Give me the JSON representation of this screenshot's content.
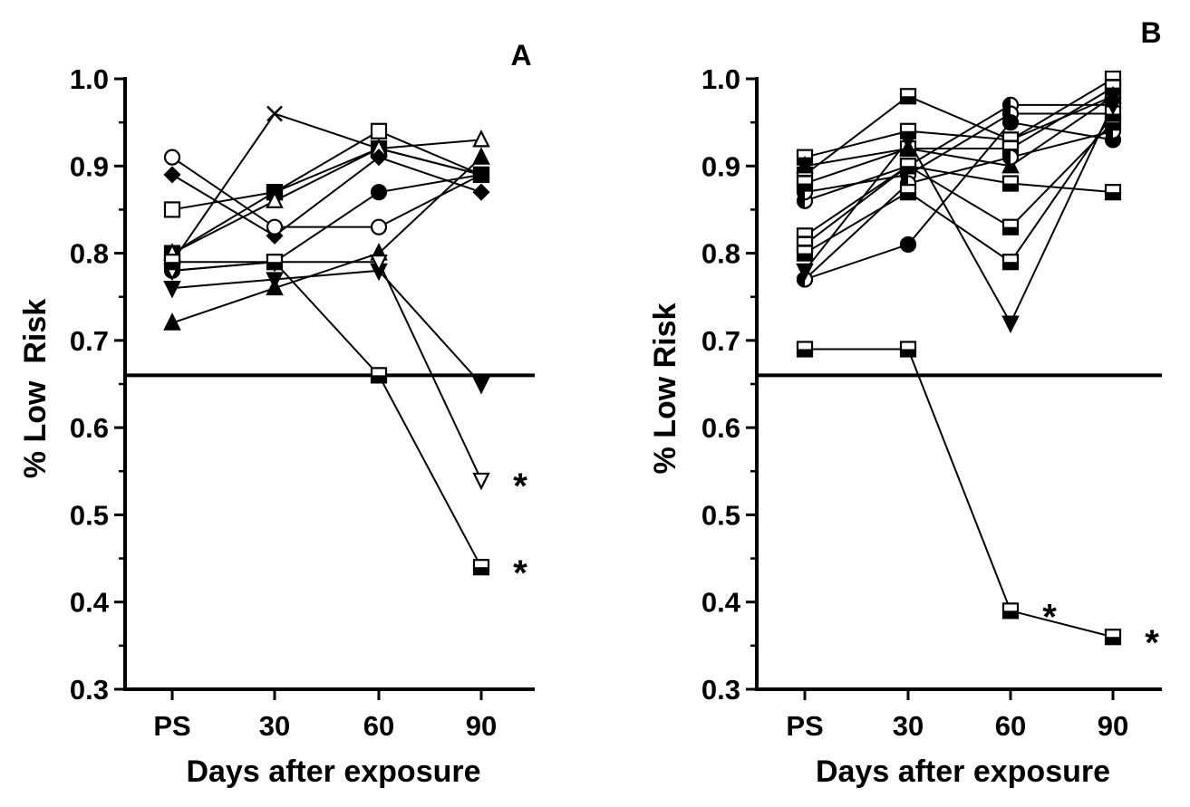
{
  "chart_data": [
    {
      "type": "line",
      "panel_label": "A",
      "xlabel": "Days after exposure",
      "ylabel": "% Low  Risk",
      "categories": [
        "PS",
        "30",
        "60",
        "90"
      ],
      "ylim": [
        0.3,
        1.0
      ],
      "yticks": [
        "0.3",
        "0.4",
        "0.5",
        "0.6",
        "0.7",
        "0.8",
        "0.9",
        "1.0"
      ],
      "threshold": 0.66,
      "series": [
        {
          "marker": "x",
          "values": [
            0.79,
            0.96,
            0.92,
            0.89
          ]
        },
        {
          "marker": "square-open",
          "values": [
            0.85,
            0.87,
            0.94,
            0.89
          ]
        },
        {
          "marker": "square-filled",
          "values": [
            0.8,
            0.87,
            0.92,
            0.89
          ]
        },
        {
          "marker": "triangle-open",
          "values": [
            0.8,
            0.86,
            0.92,
            0.93
          ]
        },
        {
          "marker": "diamond-filled",
          "values": [
            0.89,
            0.82,
            0.91,
            0.87
          ]
        },
        {
          "marker": "circle-open",
          "values": [
            0.91,
            0.83,
            0.83,
            0.89
          ]
        },
        {
          "marker": "circle-filled",
          "values": [
            0.78,
            0.79,
            0.87,
            0.89
          ]
        },
        {
          "marker": "triangle-filled",
          "values": [
            0.72,
            0.76,
            0.8,
            0.91
          ]
        },
        {
          "marker": "triangle-down-filled",
          "values": [
            0.76,
            0.77,
            0.78,
            0.65
          ]
        },
        {
          "marker": "triangle-down-open",
          "values": [
            0.78,
            0.79,
            0.79,
            0.54
          ]
        },
        {
          "marker": "square-half",
          "values": [
            0.79,
            0.79,
            0.66,
            0.44
          ]
        }
      ],
      "annotations": [
        {
          "text": "*",
          "category": "90",
          "value": 0.54
        },
        {
          "text": "*",
          "category": "90",
          "value": 0.44
        }
      ]
    },
    {
      "type": "line",
      "panel_label": "B",
      "xlabel": "Days after exposure",
      "ylabel": "% Low Risk",
      "categories": [
        "PS",
        "30",
        "60",
        "90"
      ],
      "ylim": [
        0.3,
        1.0
      ],
      "yticks": [
        "0.3",
        "0.4",
        "0.5",
        "0.6",
        "0.7",
        "0.8",
        "0.9",
        "1.0"
      ],
      "threshold": 0.66,
      "series": [
        {
          "marker": "square-half",
          "values": [
            0.89,
            0.98,
            0.93,
            0.98
          ]
        },
        {
          "marker": "square-half",
          "values": [
            0.91,
            0.94,
            0.93,
            1.0
          ]
        },
        {
          "marker": "circle-half",
          "values": [
            0.86,
            0.9,
            0.97,
            0.97
          ]
        },
        {
          "marker": "circle-half",
          "values": [
            0.87,
            0.89,
            0.96,
            0.96
          ]
        },
        {
          "marker": "square-half",
          "values": [
            0.88,
            0.92,
            0.92,
            0.99
          ]
        },
        {
          "marker": "triangle-filled",
          "values": [
            0.9,
            0.92,
            0.9,
            0.98
          ]
        },
        {
          "marker": "square-half",
          "values": [
            0.82,
            0.9,
            0.88,
            0.87
          ]
        },
        {
          "marker": "circle-filled",
          "values": [
            0.77,
            0.81,
            0.95,
            0.93
          ]
        },
        {
          "marker": "circle-half",
          "values": [
            0.77,
            0.88,
            0.91,
            0.94
          ]
        },
        {
          "marker": "square-half",
          "values": [
            0.81,
            0.9,
            0.83,
            0.95
          ]
        },
        {
          "marker": "square-half",
          "values": [
            0.8,
            0.87,
            0.79,
            0.96
          ]
        },
        {
          "marker": "triangle-down-filled",
          "values": [
            0.78,
            0.93,
            0.72,
            0.97
          ]
        },
        {
          "marker": "square-half",
          "values": [
            0.69,
            0.69,
            0.39,
            0.36
          ]
        }
      ],
      "annotations": [
        {
          "text": "*",
          "category": "60",
          "value": 0.39
        },
        {
          "text": "*",
          "category": "90",
          "value": 0.36
        }
      ]
    }
  ]
}
